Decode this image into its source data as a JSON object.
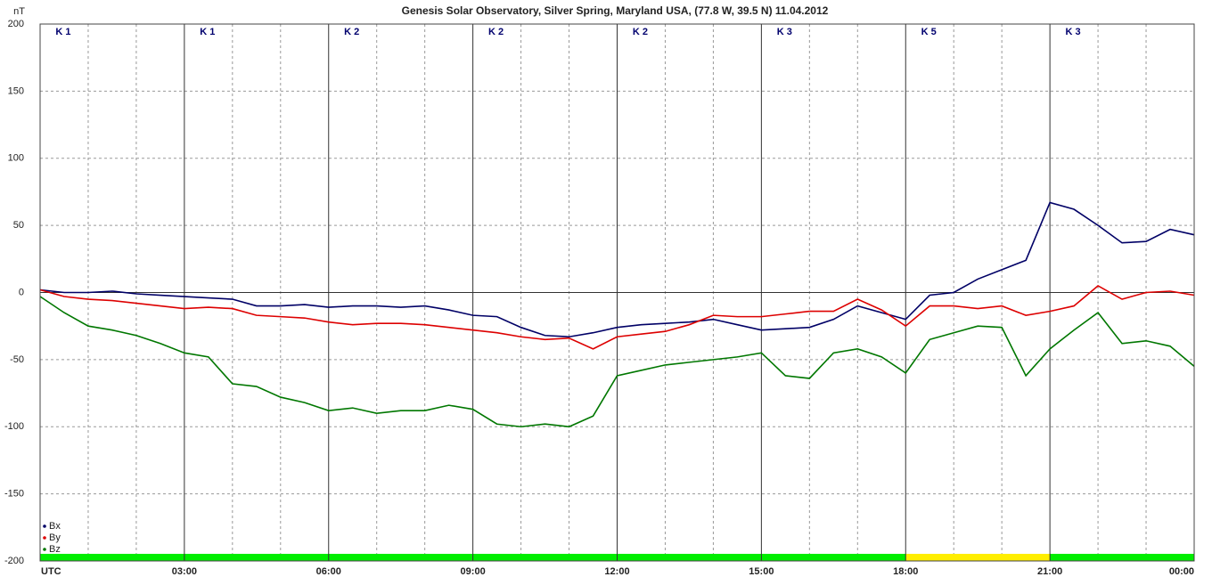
{
  "chart_data": {
    "type": "line",
    "title": "Genesis Solar Observatory, Silver Spring, Maryland USA, (77.8 W, 39.5 N)  11.04.2012",
    "y_label": "nT",
    "x": [
      0,
      0.5,
      1,
      1.5,
      2,
      2.5,
      3,
      3.5,
      4,
      4.5,
      5,
      5.5,
      6,
      6.5,
      7,
      7.5,
      8,
      8.5,
      9,
      9.5,
      10,
      10.5,
      11,
      11.5,
      12,
      12.5,
      13,
      13.5,
      14,
      14.5,
      15,
      15.5,
      16,
      16.5,
      17,
      17.5,
      18,
      18.5,
      19,
      19.5,
      20,
      20.5,
      21,
      21.5,
      22,
      22.5,
      23,
      23.5,
      24
    ],
    "series": [
      {
        "name": "Bx",
        "color": "#000066",
        "values": [
          2,
          0,
          0,
          1,
          -1,
          -2,
          -3,
          -4,
          -5,
          -10,
          -10,
          -9,
          -11,
          -10,
          -10,
          -11,
          -10,
          -13,
          -17,
          -18,
          -26,
          -32,
          -33,
          -30,
          -26,
          -24,
          -23,
          -22,
          -20,
          -24,
          -28,
          -27,
          -26,
          -20,
          -10,
          -15,
          -20,
          -2,
          0,
          10,
          17,
          24,
          67,
          62,
          50,
          37,
          38,
          47,
          43
        ]
      },
      {
        "name": "By",
        "color": "#dd0000",
        "values": [
          2,
          -3,
          -5,
          -6,
          -8,
          -10,
          -12,
          -11,
          -12,
          -17,
          -18,
          -19,
          -22,
          -24,
          -23,
          -23,
          -24,
          -26,
          -28,
          -30,
          -33,
          -35,
          -34,
          -42,
          -33,
          -31,
          -29,
          -24,
          -17,
          -18,
          -18,
          -16,
          -14,
          -14,
          -5,
          -13,
          -25,
          -10,
          -10,
          -12,
          -10,
          -17,
          -14,
          -10,
          5,
          -5,
          0,
          1,
          -2
        ]
      },
      {
        "name": "Bz",
        "color": "#007700",
        "values": [
          -3,
          -15,
          -25,
          -28,
          -32,
          -38,
          -45,
          -48,
          -68,
          -70,
          -78,
          -82,
          -88,
          -86,
          -90,
          -88,
          -88,
          -84,
          -87,
          -98,
          -100,
          -98,
          -100,
          -92,
          -62,
          -58,
          -54,
          -52,
          -50,
          -48,
          -45,
          -62,
          -64,
          -45,
          -42,
          -48,
          -60,
          -35,
          -30,
          -25,
          -26,
          -62,
          -42,
          -28,
          -15,
          -38,
          -36,
          -40,
          -55
        ]
      }
    ],
    "xlim": [
      0,
      24
    ],
    "xticks": [
      {
        "value": 0,
        "label": "UTC"
      },
      {
        "value": 3,
        "label": "03:00"
      },
      {
        "value": 6,
        "label": "06:00"
      },
      {
        "value": 9,
        "label": "09:00"
      },
      {
        "value": 12,
        "label": "12:00"
      },
      {
        "value": 15,
        "label": "15:00"
      },
      {
        "value": 18,
        "label": "18:00"
      },
      {
        "value": 21,
        "label": "21:00"
      },
      {
        "value": 24,
        "label": "00:00"
      }
    ],
    "xgrid": [
      1,
      2,
      4,
      5,
      7,
      8,
      10,
      11,
      13,
      14,
      16,
      17,
      19,
      20,
      22,
      23
    ],
    "ylim": [
      -200,
      200
    ],
    "yticks": [
      -200,
      -150,
      -100,
      -50,
      0,
      50,
      100,
      150,
      200
    ],
    "k_labels": [
      "K 1",
      "K 1",
      "K 2",
      "K 2",
      "K 2",
      "K 3",
      "K 5",
      "K 3"
    ],
    "k_colors": [
      "#00ee00",
      "#00ee00",
      "#00ee00",
      "#00ee00",
      "#00ee00",
      "#00ee00",
      "#ffee00",
      "#00ee00"
    ]
  }
}
